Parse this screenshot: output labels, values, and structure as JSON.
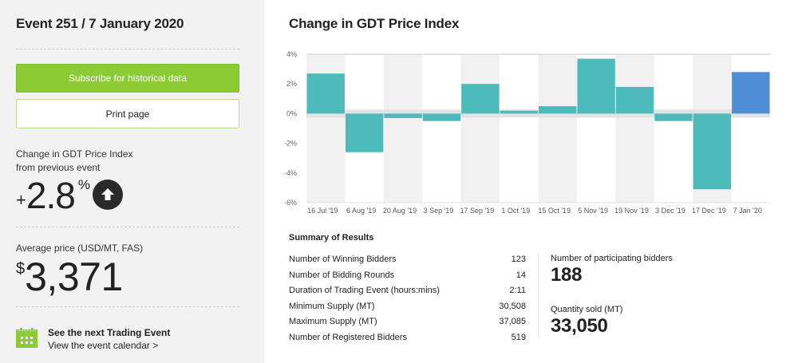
{
  "sidebar": {
    "event_title": "Event 251 / 7 January 2020",
    "subscribe_label": "Subscribe for historical data",
    "print_label": "Print page",
    "change": {
      "label_line1": "Change in GDT Price Index",
      "label_line2": "from previous event",
      "sign": "+",
      "value": "2.8",
      "unit": "%",
      "direction_icon": "arrow-up-circle-icon"
    },
    "average": {
      "label": "Average price (USD/MT, FAS)",
      "currency": "$",
      "value": "3,371"
    },
    "next_event": {
      "icon": "calendar-icon",
      "title": "See the next Trading Event",
      "link": "View the event calendar >"
    }
  },
  "main": {
    "chart_title": "Change in GDT Price Index",
    "summary": {
      "title": "Summary of Results",
      "rows": [
        {
          "label": "Number of Winning Bidders",
          "value": "123"
        },
        {
          "label": "Number of Bidding Rounds",
          "value": "14"
        },
        {
          "label": "Duration of Trading Event (hours:mins)",
          "value": "2:11"
        },
        {
          "label": "Minimum Supply (MT)",
          "value": "30,508"
        },
        {
          "label": "Maximum Supply (MT)",
          "value": "37,085"
        },
        {
          "label": "Number of Registered Bidders",
          "value": "519"
        }
      ]
    },
    "stats": {
      "participating_label": "Number of participating bidders",
      "participating_value": "188",
      "quantity_label": "Quantity sold (MT)",
      "quantity_value": "33,050"
    }
  },
  "colors": {
    "accent_green": "#8dcb35",
    "bar_teal": "#4dbbbb",
    "bar_current": "#4f8ed6"
  },
  "chart_data": {
    "type": "bar",
    "title": "Change in GDT Price Index",
    "categories": [
      "16 Jul '19",
      "6 Aug '19",
      "20 Aug '19",
      "3 Sep '19",
      "17 Sep '19",
      "1 Oct '19",
      "15 Oct '19",
      "5 Nov '19",
      "19 Nov '19",
      "3 Dec '19",
      "17 Dec '19",
      "7 Jan '20"
    ],
    "values": [
      2.7,
      -2.6,
      -0.3,
      -0.5,
      2.0,
      0.2,
      0.5,
      3.7,
      1.8,
      -0.5,
      -5.1,
      2.8
    ],
    "highlight_index": 11,
    "ylim": [
      -6,
      4
    ],
    "yticks": [
      4,
      2,
      0,
      -2,
      -4,
      -6
    ],
    "ytick_labels": [
      "4%",
      "2%",
      "0%",
      "-2%",
      "-4%",
      "-6%"
    ],
    "xlabel": "",
    "ylabel": "",
    "grid": false
  }
}
